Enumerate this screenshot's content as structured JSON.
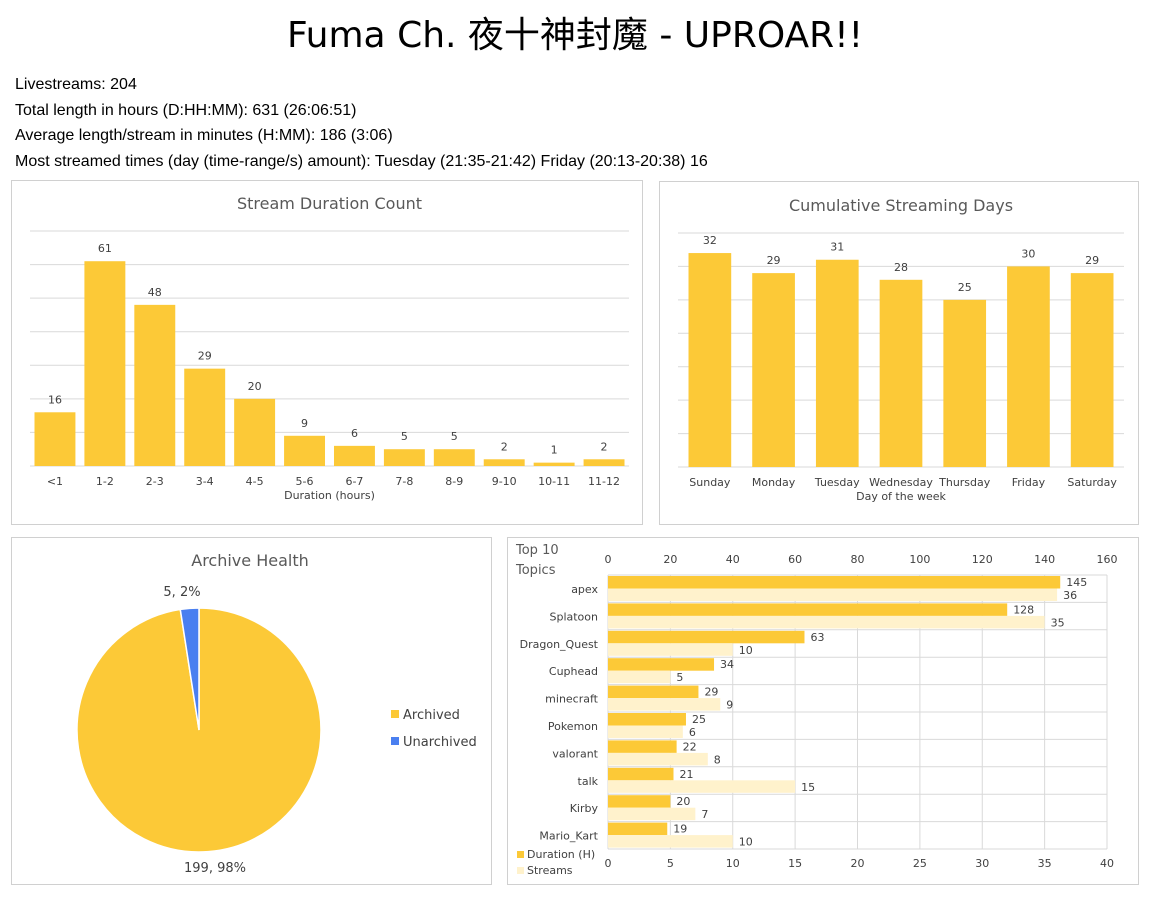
{
  "page": {
    "title": "Fuma Ch. 夜十神封魔 - UPROAR!!",
    "stats": [
      "Livestreams: 204",
      "Total length in hours (D:HH:MM): 631 (26:06:51)",
      "Average length/stream in minutes (H:MM): 186 (3:06)",
      "Most streamed times (day (time-range/s) amount): Tuesday (21:35-21:42) Friday (20:13-20:38) 16"
    ]
  },
  "colors": {
    "bar": "#fcc937",
    "light_bar": "#fff2cc",
    "blue": "#4a7ff0",
    "grid": "#d9d9d9",
    "text": "#595959"
  },
  "chart_data": [
    {
      "type": "bar",
      "title": "Stream Duration Count",
      "xlabel": "Duration (hours)",
      "ylabel": "",
      "categories": [
        "<1",
        "1-2",
        "2-3",
        "3-4",
        "4-5",
        "5-6",
        "6-7",
        "7-8",
        "8-9",
        "9-10",
        "10-11",
        "11-12"
      ],
      "values": [
        16,
        61,
        48,
        29,
        20,
        9,
        6,
        5,
        5,
        2,
        1,
        2
      ],
      "ylim": [
        0,
        70
      ],
      "grid": true
    },
    {
      "type": "bar",
      "title": "Cumulative Streaming Days",
      "xlabel": "Day of the week",
      "ylabel": "",
      "categories": [
        "Sunday",
        "Monday",
        "Tuesday",
        "Wednesday",
        "Thursday",
        "Friday",
        "Saturday"
      ],
      "values": [
        32,
        29,
        31,
        28,
        25,
        30,
        29
      ],
      "ylim": [
        0,
        35
      ],
      "grid": true
    },
    {
      "type": "pie",
      "title": "Archive Health",
      "categories": [
        "Archived",
        "Unarchived"
      ],
      "values": [
        199,
        5
      ],
      "labels": [
        "199, 98%",
        "5, 2%"
      ],
      "legend": "right"
    },
    {
      "type": "bar",
      "orientation": "horizontal",
      "title": "Top 10 Topics",
      "categories": [
        "apex",
        "Splatoon",
        "Dragon_Quest",
        "Cuphead",
        "minecraft",
        "Pokemon",
        "valorant",
        "talk",
        "Kirby",
        "Mario_Kart"
      ],
      "series": [
        {
          "name": "Duration (H)",
          "axis": "top",
          "values": [
            145,
            128,
            63,
            34,
            29,
            25,
            22,
            21,
            20,
            19
          ]
        },
        {
          "name": "Streams",
          "axis": "bottom",
          "values": [
            36,
            35,
            10,
            5,
            9,
            6,
            8,
            15,
            7,
            10
          ]
        }
      ],
      "top_axis": {
        "ticks": [
          "0",
          "20",
          "40",
          "60",
          "80",
          "100",
          "120",
          "140",
          "160"
        ],
        "range": [
          0,
          160
        ]
      },
      "bottom_axis": {
        "ticks": [
          "0",
          "5",
          "10",
          "15",
          "20",
          "25",
          "30",
          "35",
          "40"
        ],
        "range": [
          0,
          40
        ]
      },
      "legend": "bottom-left",
      "grid": true
    }
  ]
}
